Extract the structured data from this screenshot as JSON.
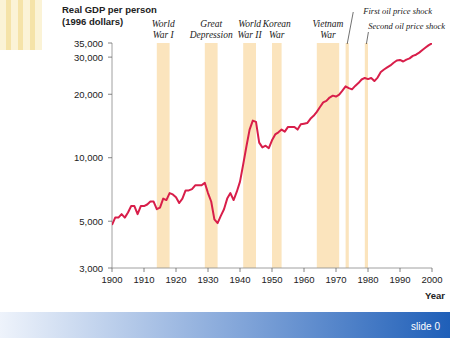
{
  "chart_data": {
    "type": "line",
    "ylabel": [
      "Real GDP per person",
      "(1996 dollars)"
    ],
    "xlabel": "Year",
    "log": "y",
    "color": "#d81e4a",
    "xlim": [
      1900,
      2000
    ],
    "xticks": [
      1900,
      1910,
      1920,
      1930,
      1940,
      1950,
      1960,
      1970,
      1980,
      1990,
      2000
    ],
    "ylim": [
      3000,
      35000
    ],
    "yticks": [
      {
        "value": 3000,
        "label": "3,000"
      },
      {
        "value": 5000,
        "label": "5,000"
      },
      {
        "value": 10000,
        "label": "10,000"
      },
      {
        "value": 20000,
        "label": "20,000"
      },
      {
        "value": 30000,
        "label": "30,000"
      },
      {
        "value": 35000,
        "label": "35,000"
      }
    ],
    "x": [
      1900,
      1901,
      1902,
      1903,
      1904,
      1905,
      1906,
      1907,
      1908,
      1909,
      1910,
      1911,
      1912,
      1913,
      1914,
      1915,
      1916,
      1917,
      1918,
      1919,
      1920,
      1921,
      1922,
      1923,
      1924,
      1925,
      1926,
      1927,
      1928,
      1929,
      1930,
      1931,
      1932,
      1933,
      1934,
      1935,
      1936,
      1937,
      1938,
      1939,
      1940,
      1941,
      1942,
      1943,
      1944,
      1945,
      1946,
      1947,
      1948,
      1949,
      1950,
      1951,
      1952,
      1953,
      1954,
      1955,
      1956,
      1957,
      1958,
      1959,
      1960,
      1961,
      1962,
      1963,
      1964,
      1965,
      1966,
      1967,
      1968,
      1969,
      1970,
      1971,
      1972,
      1973,
      1974,
      1975,
      1976,
      1977,
      1978,
      1979,
      1980,
      1981,
      1982,
      1983,
      1984,
      1985,
      1986,
      1987,
      1988,
      1989,
      1990,
      1991,
      1992,
      1993,
      1994,
      1995,
      1996,
      1997,
      1998,
      1999,
      2000
    ],
    "values": [
      4800,
      5200,
      5200,
      5400,
      5200,
      5500,
      5900,
      5900,
      5400,
      5900,
      5900,
      6000,
      6200,
      6200,
      5700,
      5800,
      6400,
      6300,
      6800,
      6700,
      6500,
      6100,
      6400,
      7000,
      7000,
      7100,
      7400,
      7400,
      7400,
      7600,
      6800,
      6200,
      5100,
      4900,
      5300,
      5700,
      6400,
      6800,
      6300,
      6900,
      7700,
      9300,
      11300,
      13600,
      15000,
      14800,
      11800,
      11200,
      11400,
      11100,
      12100,
      12900,
      13200,
      13600,
      13300,
      14000,
      14000,
      14000,
      13600,
      14400,
      14500,
      14600,
      15300,
      15800,
      16500,
      17400,
      18300,
      18600,
      19300,
      19700,
      19500,
      19900,
      20800,
      21800,
      21400,
      21100,
      21900,
      22600,
      23500,
      23900,
      23600,
      23900,
      23100,
      24000,
      25500,
      26200,
      26800,
      27400,
      28200,
      28900,
      29100,
      28600,
      29200,
      29600,
      30400,
      30800,
      31500,
      32400,
      33300,
      34200,
      34900
    ],
    "periods": [
      {
        "label": [
          "World",
          "War I"
        ],
        "start": 1914,
        "end": 1918
      },
      {
        "label": [
          "Great",
          "Depression"
        ],
        "start": 1929,
        "end": 1933
      },
      {
        "label": [
          "World",
          "War II"
        ],
        "start": 1941,
        "end": 1945
      },
      {
        "label": [
          "Korean",
          "War"
        ],
        "start": 1950,
        "end": 1953
      },
      {
        "label": [
          "Vietnam",
          "War"
        ],
        "start": 1964,
        "end": 1971
      },
      {
        "label": [
          "First oil price shock"
        ],
        "start": 1973,
        "end": 1974
      },
      {
        "label": [
          "Second oil price shock"
        ],
        "start": 1979,
        "end": 1980
      }
    ]
  },
  "footer": {
    "text": "slide 0"
  }
}
